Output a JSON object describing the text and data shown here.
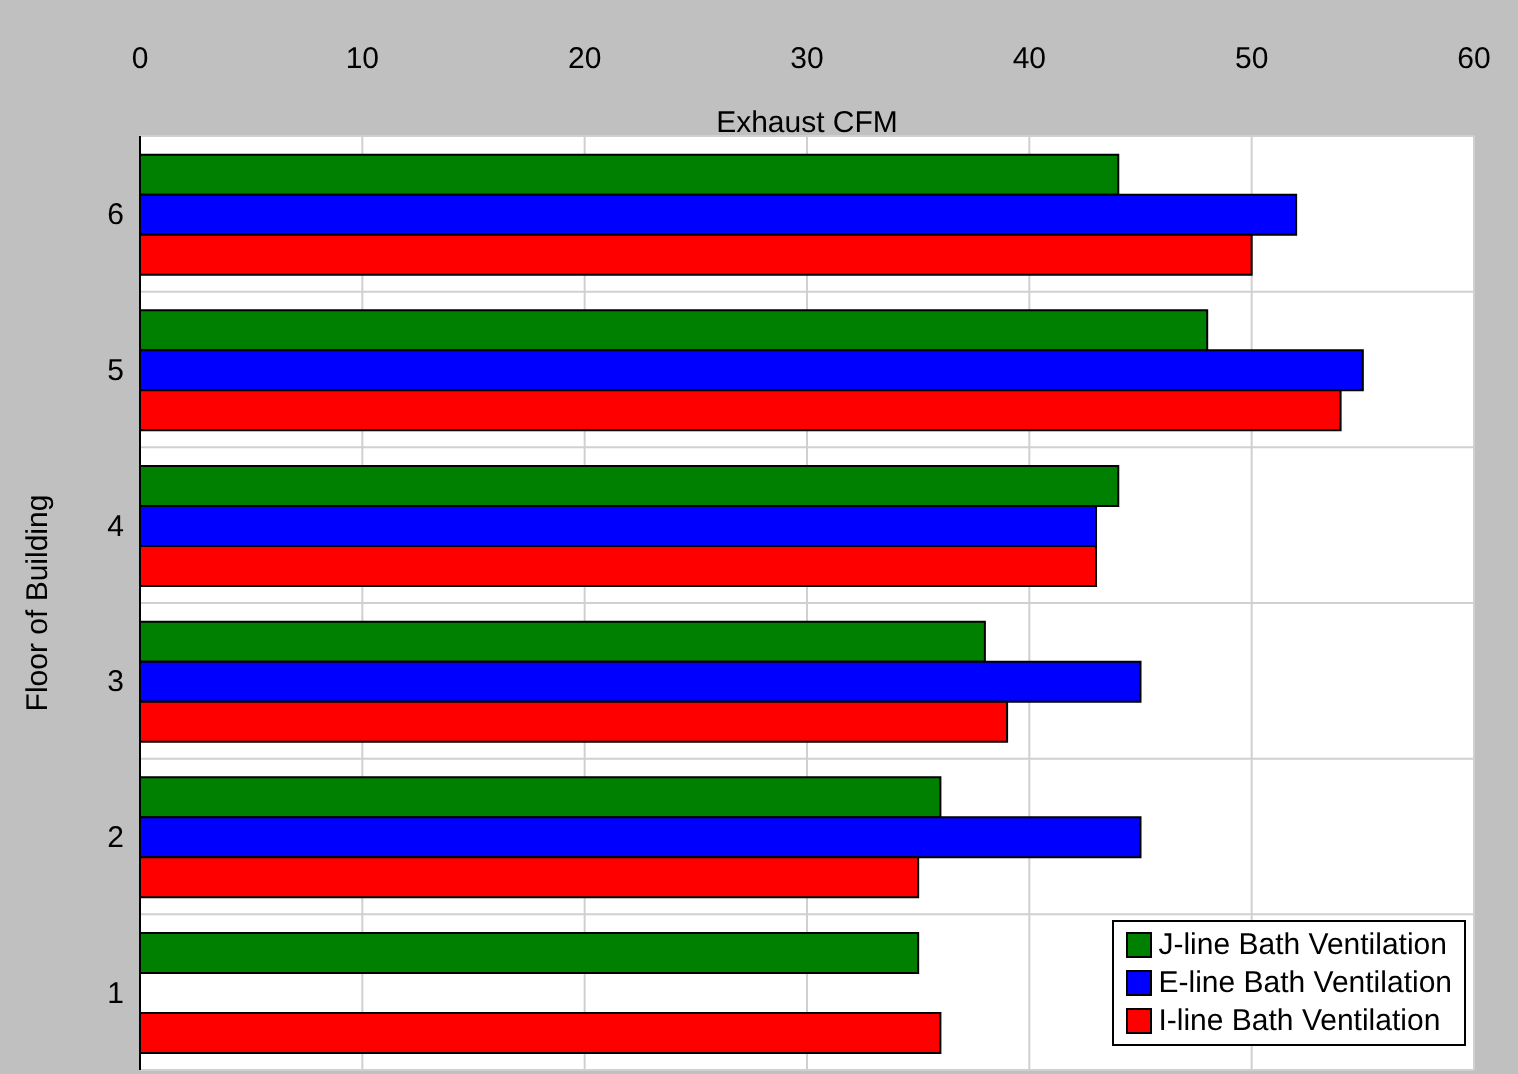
{
  "chart_data": {
    "type": "bar",
    "orientation": "horizontal",
    "xlabel": "Exhaust CFM",
    "ylabel": "Floor of Building",
    "categories": [
      "6",
      "5",
      "4",
      "3",
      "2",
      "1"
    ],
    "series": [
      {
        "name": "J-line Bath Ventilation",
        "color": "#008000",
        "values": [
          44,
          48,
          44,
          38,
          36,
          35
        ]
      },
      {
        "name": "E-line Bath Ventilation",
        "color": "#0000ff",
        "values": [
          52,
          55,
          43,
          45,
          45,
          null
        ]
      },
      {
        "name": "I-line Bath Ventilation",
        "color": "#ff0000",
        "values": [
          50,
          54,
          43,
          39,
          35,
          36
        ]
      }
    ],
    "xlim": [
      0,
      60
    ],
    "xticks": [
      0,
      10,
      20,
      30,
      40,
      50,
      60
    ],
    "grid": true,
    "legend": "bottom right"
  }
}
